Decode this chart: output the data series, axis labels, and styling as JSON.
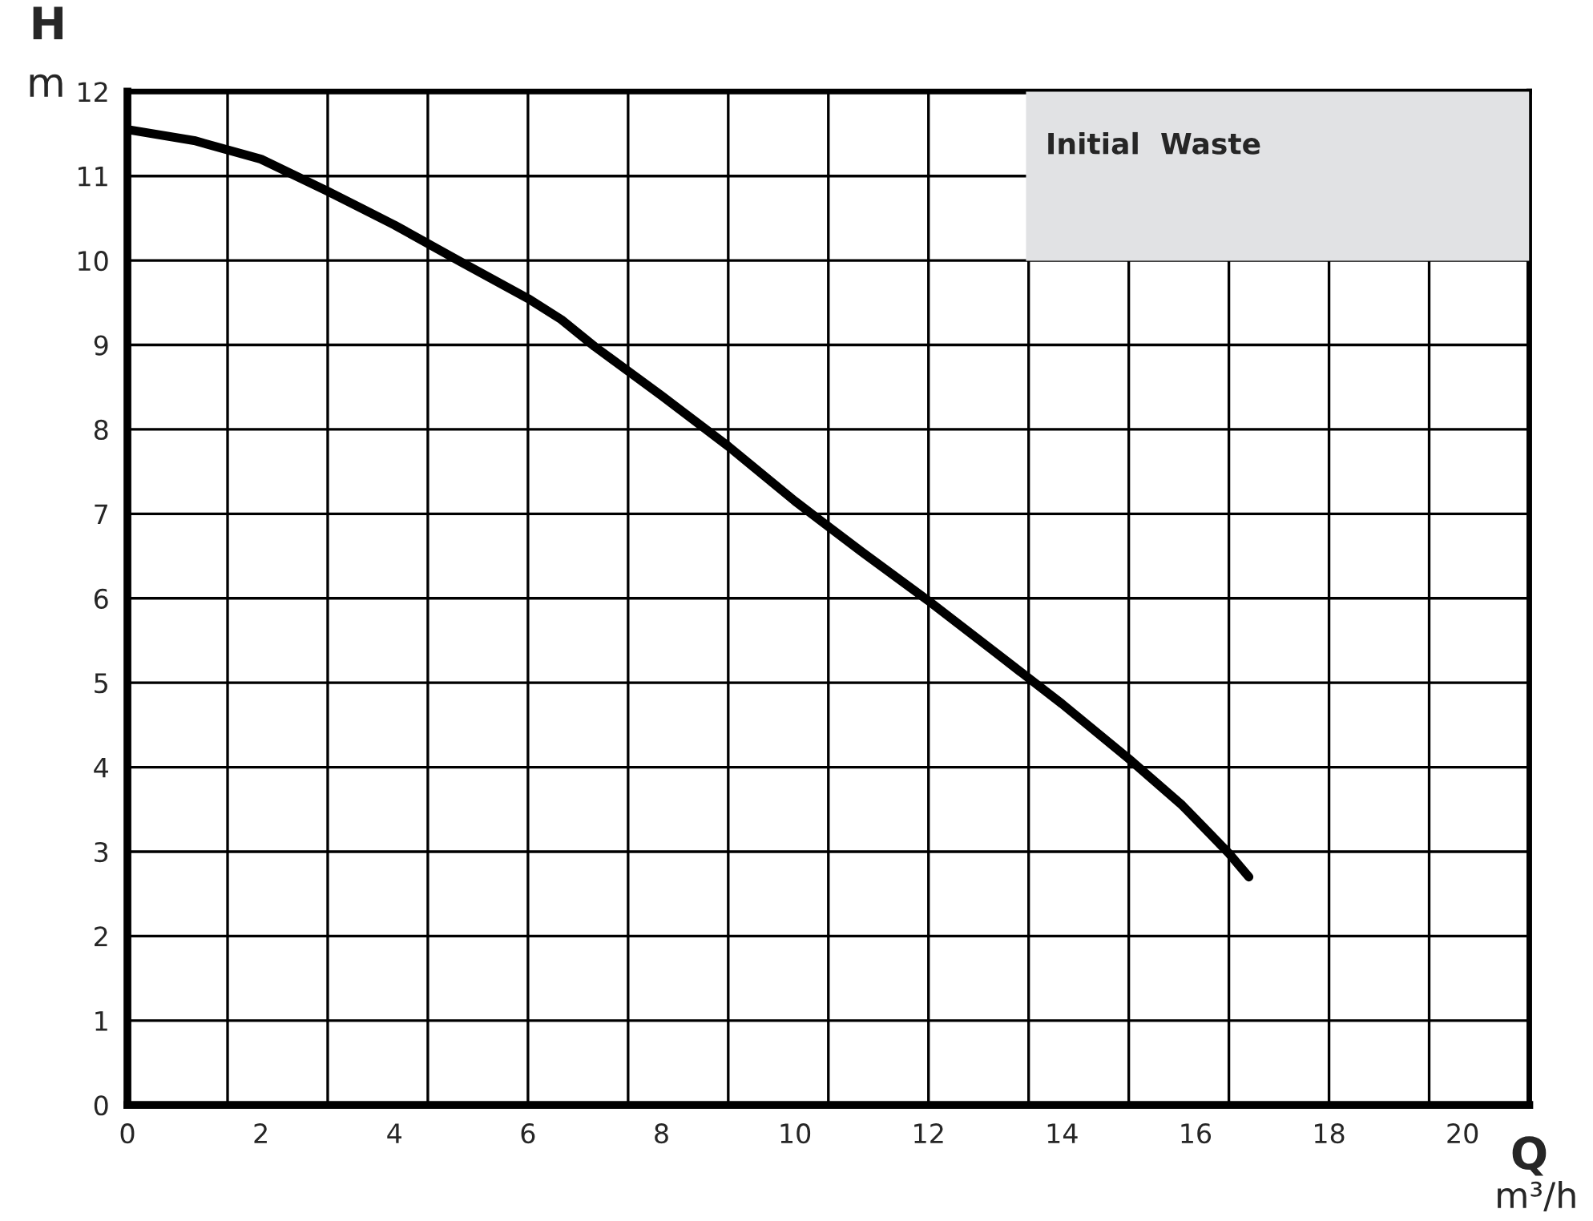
{
  "chart_data": {
    "type": "line",
    "xlabel": "Q\nm³/h",
    "ylabel": "H\nm",
    "annotations": [
      "Initial  Waste"
    ],
    "series": [
      {
        "color": "#000000",
        "x": [
          0,
          1,
          2,
          3,
          4,
          5,
          6,
          6.5,
          7,
          8,
          9,
          10,
          11,
          12,
          13,
          14,
          15,
          15.8,
          16.5,
          16.8
        ],
        "values": [
          11.55,
          11.42,
          11.2,
          10.82,
          10.42,
          9.98,
          9.55,
          9.3,
          8.98,
          8.4,
          7.8,
          7.15,
          6.55,
          5.97,
          5.36,
          4.75,
          4.1,
          3.55,
          2.98,
          2.7
        ]
      }
    ],
    "xlim": [
      0,
      21
    ],
    "xticks": [
      0,
      2,
      4,
      6,
      8,
      10,
      12,
      14,
      16,
      18,
      20
    ],
    "ylim": [
      0,
      12
    ],
    "yticks": [
      0,
      1,
      2,
      3,
      4,
      5,
      6,
      7,
      8,
      9,
      10,
      11,
      12
    ],
    "grid": "y",
    "ref_lines": [
      {
        "axis": "x",
        "value": 1.5,
        "color": "#000000"
      },
      {
        "axis": "x",
        "value": 3,
        "color": "#000000"
      },
      {
        "axis": "x",
        "value": 4.5,
        "color": "#000000"
      },
      {
        "axis": "x",
        "value": 6,
        "color": "#000000"
      },
      {
        "axis": "x",
        "value": 7.5,
        "color": "#000000"
      },
      {
        "axis": "x",
        "value": 9,
        "color": "#000000"
      },
      {
        "axis": "x",
        "value": 10.5,
        "color": "#000000"
      },
      {
        "axis": "x",
        "value": 12,
        "color": "#000000"
      },
      {
        "axis": "x",
        "value": 13.5,
        "color": "#000000"
      },
      {
        "axis": "x",
        "value": 15,
        "color": "#000000"
      },
      {
        "axis": "x",
        "value": 16.5,
        "color": "#000000"
      },
      {
        "axis": "x",
        "value": 18,
        "color": "#000000"
      },
      {
        "axis": "x",
        "value": 19.5,
        "color": "#000000"
      }
    ],
    "line_style": "solid",
    "marker": "none",
    "legend": false
  }
}
